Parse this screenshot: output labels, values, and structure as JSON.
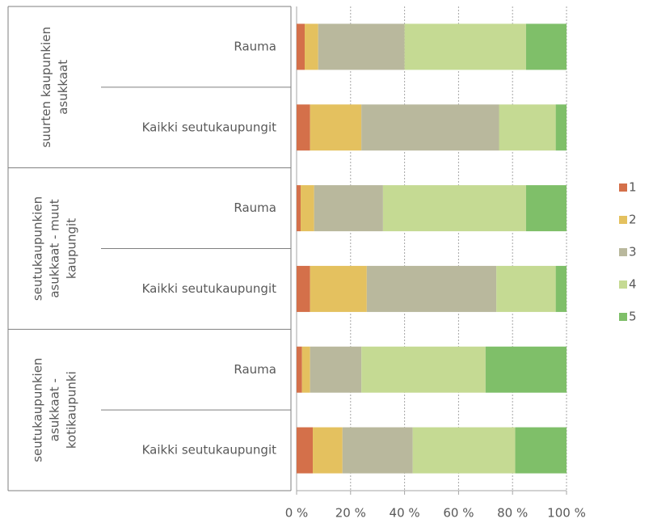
{
  "chart_data": {
    "type": "bar",
    "orientation": "horizontal",
    "stacked": true,
    "groups": [
      "suurten kaupunkien asukkaat",
      "seutukaupunkien asukkaat - muut kaupungit",
      "seutukaupunkien asukkaat - kotikaupunki"
    ],
    "categories": [
      "Rauma",
      "Kaikki seutukaupungit",
      "Rauma",
      "Kaikki seutukaupungit",
      "Rauma",
      "Kaikki seutukaupungit"
    ],
    "series": [
      {
        "name": "1",
        "color": "#d4704a",
        "values": [
          3,
          5,
          1.5,
          5,
          2,
          6
        ]
      },
      {
        "name": "2",
        "color": "#e4c15f",
        "values": [
          5,
          19,
          5,
          21,
          3,
          11
        ]
      },
      {
        "name": "3",
        "color": "#b9b89d",
        "values": [
          32,
          51,
          25.5,
          48,
          19,
          26
        ]
      },
      {
        "name": "4",
        "color": "#c5da93",
        "values": [
          45,
          21,
          53,
          22,
          46,
          38
        ]
      },
      {
        "name": "5",
        "color": "#7fbf69",
        "values": [
          15,
          4,
          15,
          4,
          30,
          19
        ]
      }
    ],
    "xlim": [
      0,
      100
    ],
    "xticks": [
      {
        "value": 0,
        "label": "0 %"
      },
      {
        "value": 20,
        "label": "20 %"
      },
      {
        "value": 40,
        "label": "40 %"
      },
      {
        "value": 60,
        "label": "60 %"
      },
      {
        "value": 80,
        "label": "80 %"
      },
      {
        "value": 100,
        "label": "100 %"
      }
    ],
    "grid": true,
    "legend": "right"
  }
}
